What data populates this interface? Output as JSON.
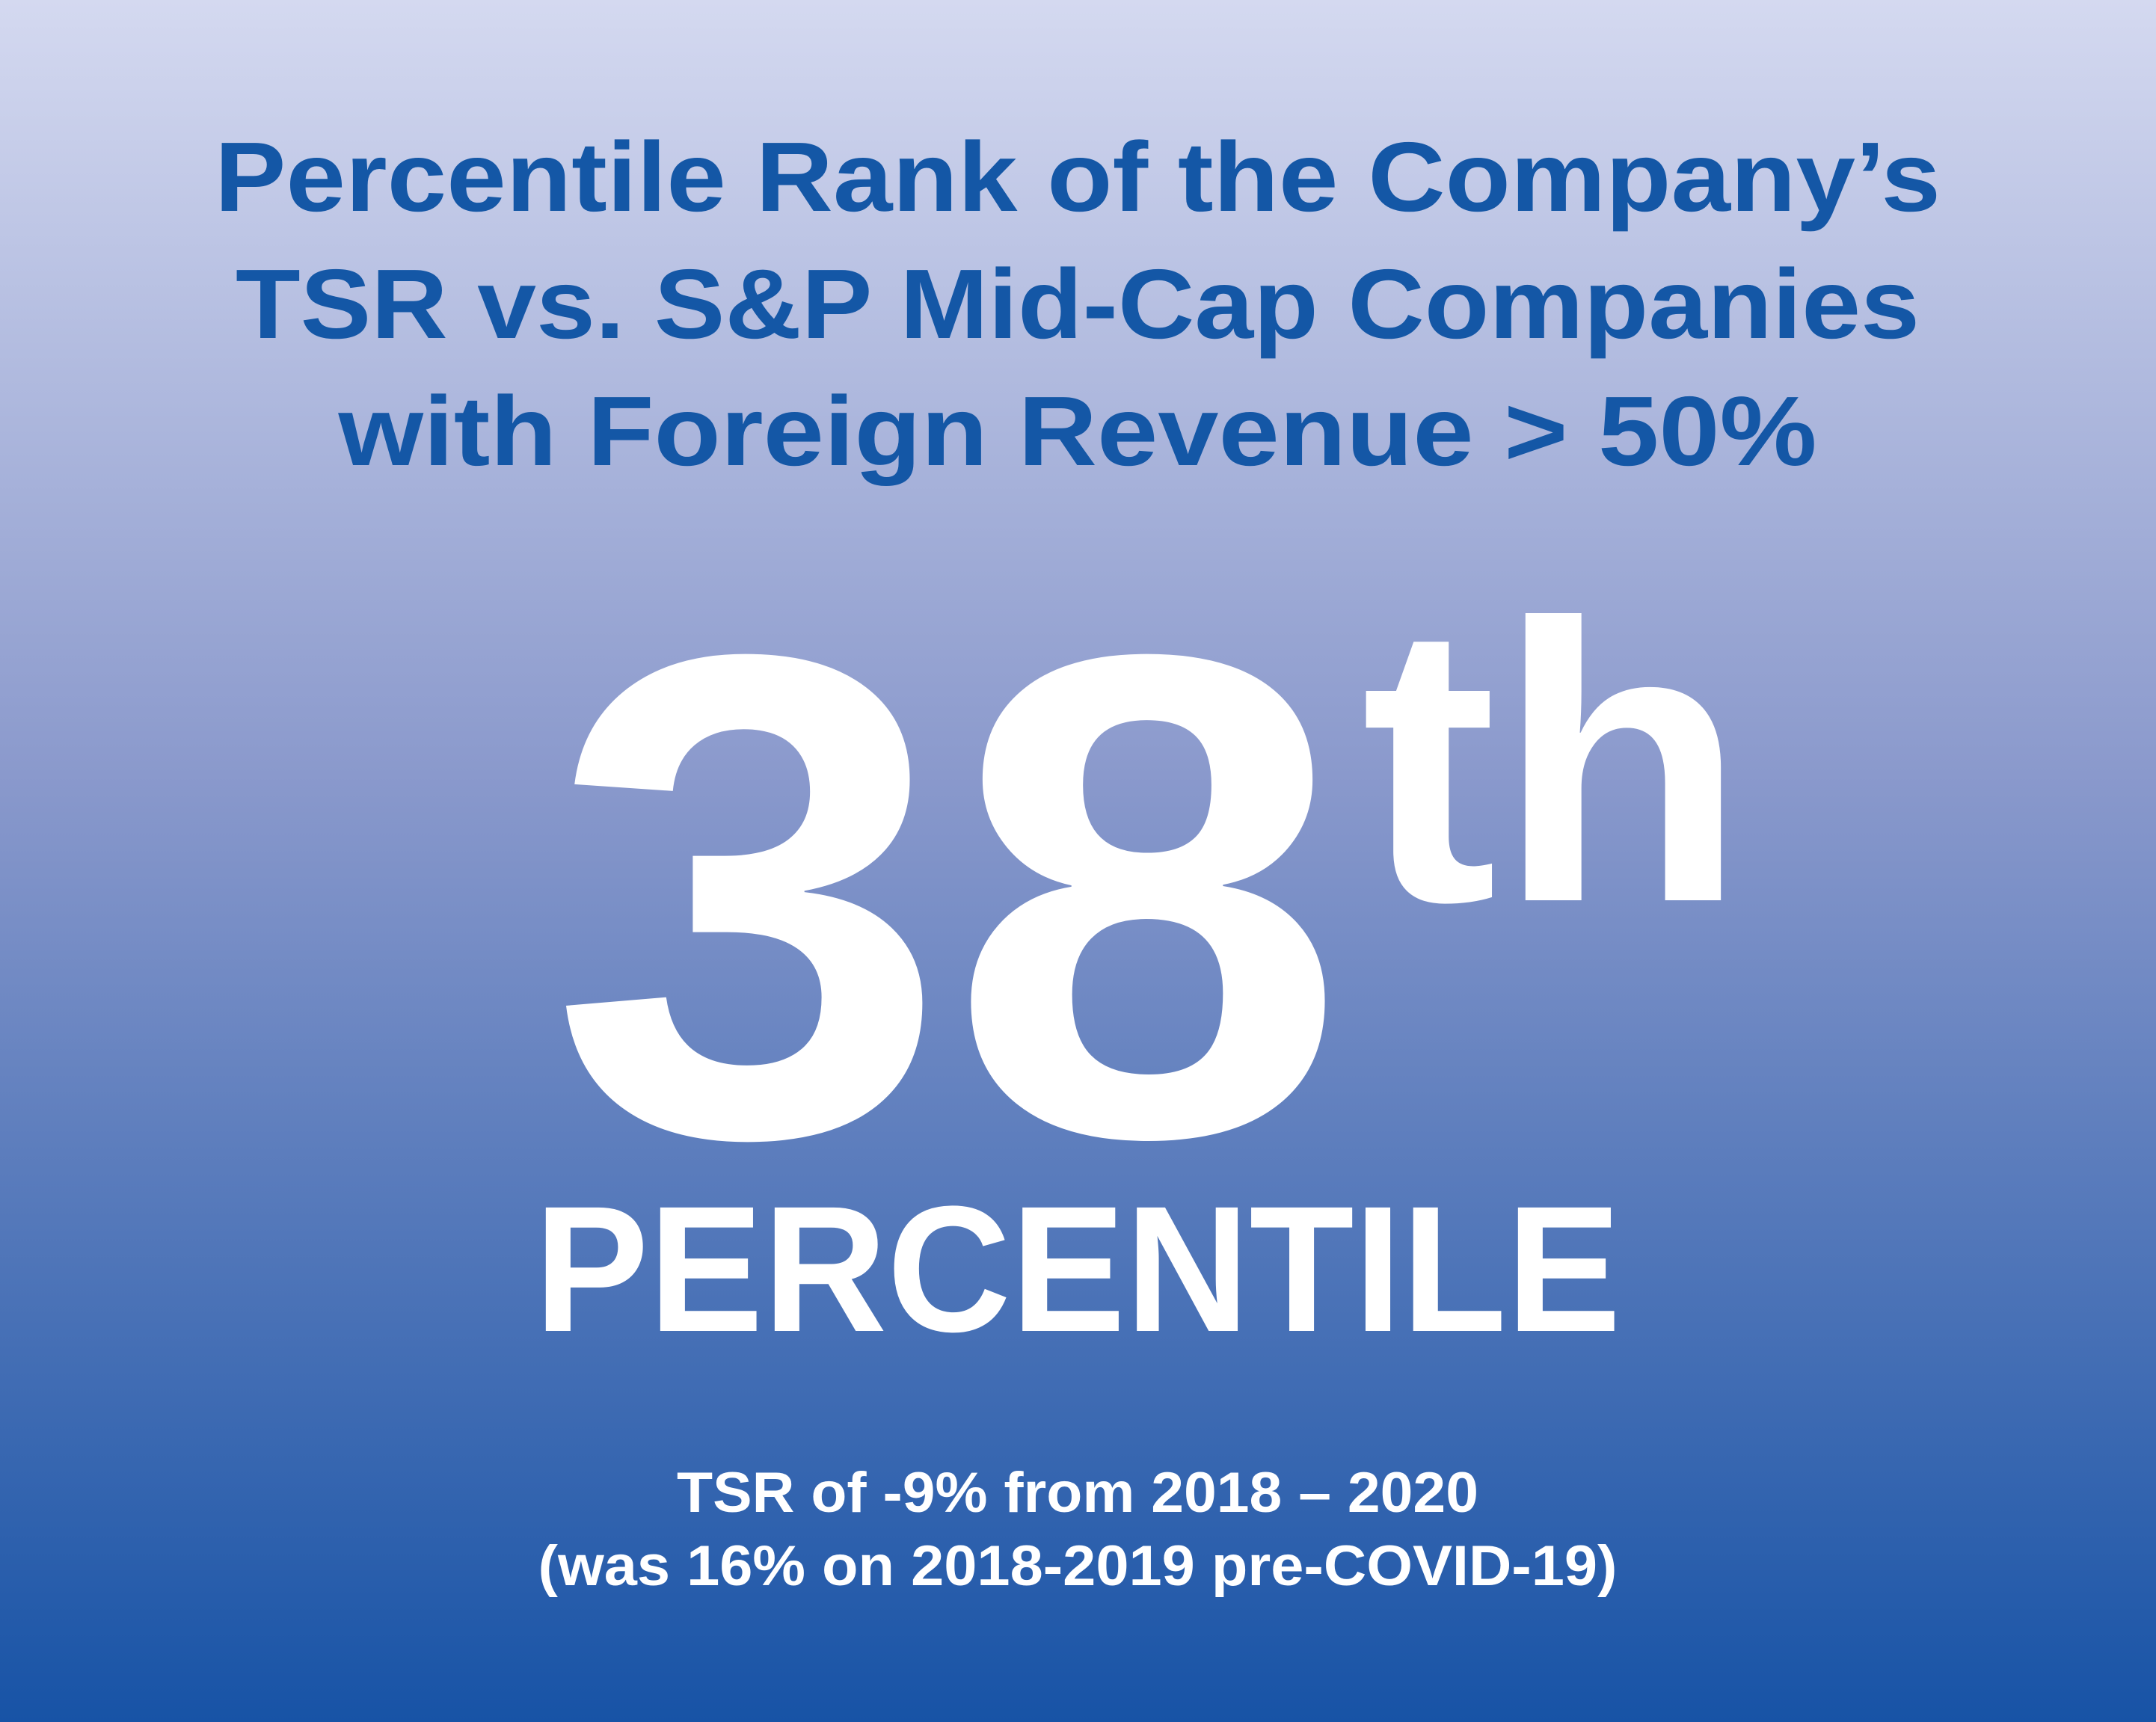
{
  "title": {
    "lines": [
      "Percentile Rank of the Company’s",
      "TSR vs. S&P Mid-Cap Companies",
      "with Foreign Revenue > 50%"
    ]
  },
  "rank": {
    "number": "38",
    "suffix": "th",
    "label": "PERCENTILE"
  },
  "note": {
    "lines": [
      "TSR of -9% from 2018 – 2020",
      "(was 16% on 2018-2019 pre-COVID-19)"
    ]
  }
}
